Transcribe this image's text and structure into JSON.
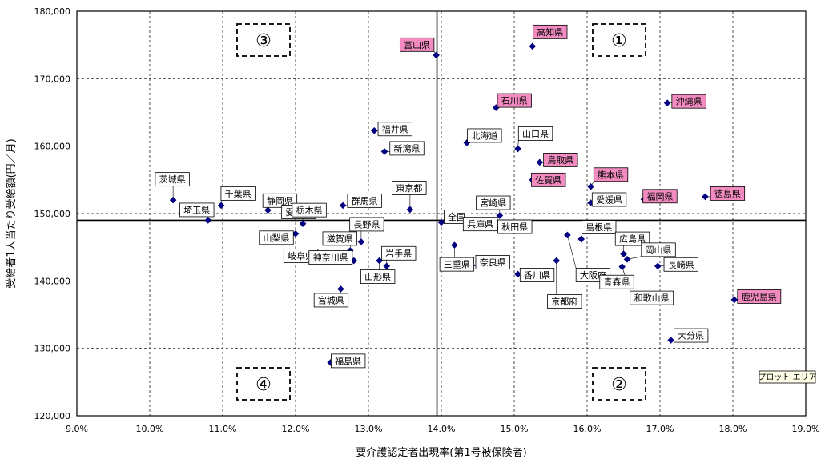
{
  "chart_data": {
    "type": "scatter",
    "xlabel": "要介護認定者出現率(第1号被保険者)",
    "ylabel": "受給者1人当たり受給額(円／月)",
    "xlim": [
      0.09,
      0.19
    ],
    "ylim": [
      120000,
      180000
    ],
    "x_ticks": [
      "9.0%",
      "10.0%",
      "11.0%",
      "12.0%",
      "13.0%",
      "14.0%",
      "15.0%",
      "16.0%",
      "17.0%",
      "18.0%",
      "19.0%"
    ],
    "y_ticks": [
      "120,000",
      "130,000",
      "140,000",
      "150,000",
      "160,000",
      "170,000",
      "180,000"
    ],
    "grid": true,
    "reference_lines": {
      "x": 0.1394,
      "y": 149000
    },
    "marker_color": "#000080",
    "highlight_color": "#f28cc0",
    "quadrant_labels": [
      "③",
      "①",
      "④",
      "②"
    ],
    "plot_area_label": "プロット エリア",
    "points": [
      {
        "label": "茨城県",
        "x": 0.1032,
        "y": 152000,
        "hl": false
      },
      {
        "label": "埼玉県",
        "x": 0.108,
        "y": 149000,
        "hl": false
      },
      {
        "label": "千葉県",
        "x": 0.1098,
        "y": 151200,
        "hl": false
      },
      {
        "label": "静岡県",
        "x": 0.1162,
        "y": 150500,
        "hl": false
      },
      {
        "label": "愛知県",
        "x": 0.119,
        "y": 150000,
        "hl": false
      },
      {
        "label": "栃木県",
        "x": 0.121,
        "y": 148500,
        "hl": false
      },
      {
        "label": "山梨県",
        "x": 0.12,
        "y": 147000,
        "hl": false
      },
      {
        "label": "群馬県",
        "x": 0.1265,
        "y": 151200,
        "hl": false
      },
      {
        "label": "滋賀県",
        "x": 0.1275,
        "y": 144500,
        "hl": false
      },
      {
        "label": "岐阜県",
        "x": 0.1238,
        "y": 143000,
        "hl": false
      },
      {
        "label": "神奈川県",
        "x": 0.128,
        "y": 143000,
        "hl": false
      },
      {
        "label": "長野県",
        "x": 0.129,
        "y": 145800,
        "hl": false
      },
      {
        "label": "宮城県",
        "x": 0.1262,
        "y": 138800,
        "hl": false
      },
      {
        "label": "福島県",
        "x": 0.1248,
        "y": 127900,
        "hl": false
      },
      {
        "label": "福井県",
        "x": 0.1308,
        "y": 162300,
        "hl": false
      },
      {
        "label": "新潟県",
        "x": 0.1322,
        "y": 159200,
        "hl": false
      },
      {
        "label": "東京都",
        "x": 0.1357,
        "y": 150600,
        "hl": false
      },
      {
        "label": "山形県",
        "x": 0.1315,
        "y": 143000,
        "hl": false
      },
      {
        "label": "岩手県",
        "x": 0.1325,
        "y": 142200,
        "hl": false
      },
      {
        "label": "富山県",
        "x": 0.1393,
        "y": 173500,
        "hl": true
      },
      {
        "label": "全国",
        "x": 0.14,
        "y": 148700,
        "hl": false
      },
      {
        "label": "三重県",
        "x": 0.1418,
        "y": 145300,
        "hl": false
      },
      {
        "label": "北海道",
        "x": 0.1435,
        "y": 160500,
        "hl": false
      },
      {
        "label": "兵庫県",
        "x": 0.1438,
        "y": 148200,
        "hl": false
      },
      {
        "label": "奈良県",
        "x": 0.1442,
        "y": 142300,
        "hl": false
      },
      {
        "label": "宮崎県",
        "x": 0.148,
        "y": 149700,
        "hl": false
      },
      {
        "label": "秋田県",
        "x": 0.148,
        "y": 147800,
        "hl": false
      },
      {
        "label": "石川県",
        "x": 0.1475,
        "y": 165700,
        "hl": true
      },
      {
        "label": "山口県",
        "x": 0.1505,
        "y": 159600,
        "hl": false
      },
      {
        "label": "香川県",
        "x": 0.1505,
        "y": 141000,
        "hl": false
      },
      {
        "label": "高知県",
        "x": 0.1525,
        "y": 174800,
        "hl": true
      },
      {
        "label": "佐賀県",
        "x": 0.1525,
        "y": 155000,
        "hl": true
      },
      {
        "label": "鳥取県",
        "x": 0.1535,
        "y": 157600,
        "hl": true
      },
      {
        "label": "京都府",
        "x": 0.1558,
        "y": 143000,
        "hl": false
      },
      {
        "label": "大阪府",
        "x": 0.1573,
        "y": 146800,
        "hl": false
      },
      {
        "label": "島根県",
        "x": 0.1592,
        "y": 146200,
        "hl": false
      },
      {
        "label": "熊本県",
        "x": 0.1605,
        "y": 154000,
        "hl": true
      },
      {
        "label": "愛媛県",
        "x": 0.1605,
        "y": 151600,
        "hl": false
      },
      {
        "label": "青森県",
        "x": 0.1622,
        "y": 140900,
        "hl": false
      },
      {
        "label": "広島県",
        "x": 0.165,
        "y": 144000,
        "hl": false
      },
      {
        "label": "岡山県",
        "x": 0.1655,
        "y": 143200,
        "hl": false
      },
      {
        "label": "和歌山県",
        "x": 0.1648,
        "y": 142100,
        "hl": false
      },
      {
        "label": "福岡県",
        "x": 0.1678,
        "y": 152100,
        "hl": true
      },
      {
        "label": "長崎県",
        "x": 0.1697,
        "y": 142200,
        "hl": false
      },
      {
        "label": "沖縄県",
        "x": 0.171,
        "y": 166400,
        "hl": true
      },
      {
        "label": "大分県",
        "x": 0.1715,
        "y": 131200,
        "hl": false
      },
      {
        "label": "徳島県",
        "x": 0.1762,
        "y": 152500,
        "hl": true
      },
      {
        "label": "鹿児島県",
        "x": 0.1802,
        "y": 137200,
        "hl": true
      }
    ]
  }
}
